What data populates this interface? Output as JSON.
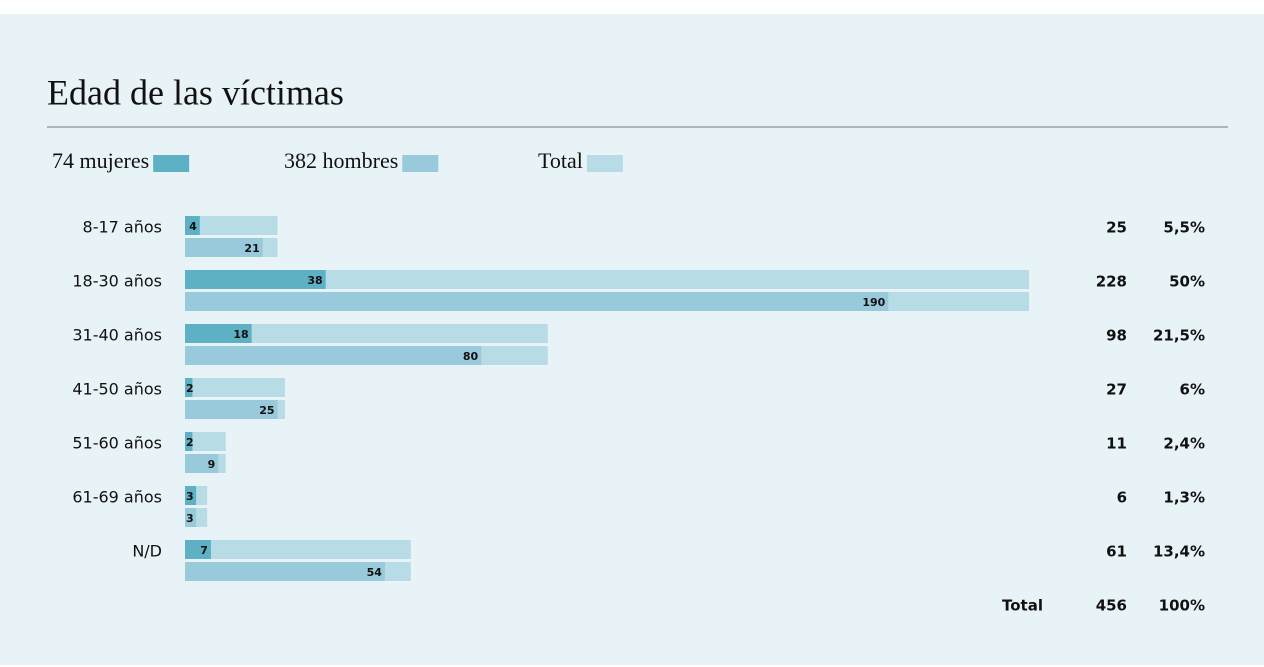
{
  "chart_data": {
    "type": "bar",
    "title": "Edad de las víctimas",
    "categories": [
      "8-17 años",
      "18-30 años",
      "31-40 años",
      "41-50 años",
      "51-60 años",
      "61-69 años",
      "N/D"
    ],
    "series": [
      {
        "name": "74 mujeres",
        "color": "#5eb0c5",
        "values": [
          4,
          38,
          18,
          2,
          2,
          3,
          7
        ]
      },
      {
        "name": "382 hombres",
        "color": "#98cadb",
        "values": [
          21,
          190,
          80,
          25,
          9,
          3,
          54
        ]
      },
      {
        "name": "Total",
        "color": "#b7dce6",
        "values": [
          25,
          228,
          98,
          27,
          11,
          6,
          61
        ]
      }
    ],
    "percent": {
      "values": [
        5.5,
        50,
        21.5,
        6,
        2.4,
        1.3,
        13.4
      ],
      "value_labels": [
        "5,5%",
        "50%",
        "21,5%",
        "6%",
        "2,4%",
        "1,3%",
        "13,4%"
      ]
    },
    "total": {
      "label": "Total",
      "value": 456,
      "percent": {
        "value": 100,
        "label": "100%"
      }
    }
  }
}
